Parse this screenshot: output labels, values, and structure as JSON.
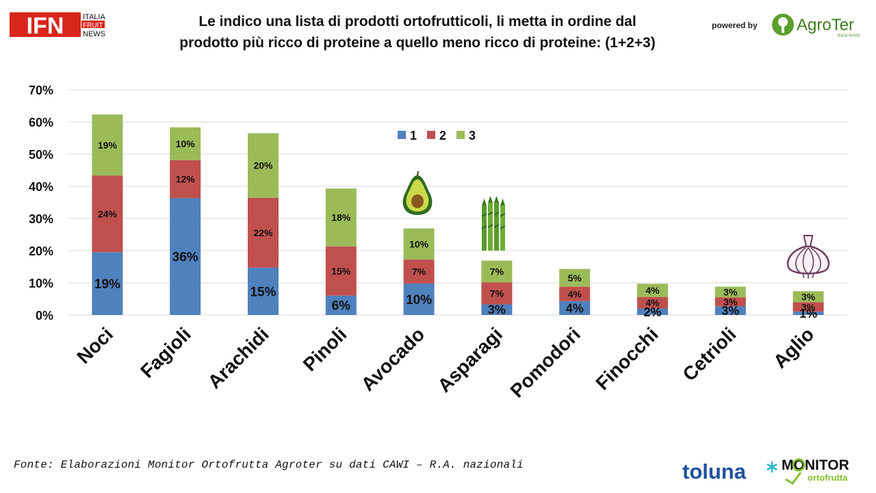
{
  "header": {
    "logo_ifn": {
      "letters": "IFN",
      "line1": "ITALIA",
      "line2": "FRUIT",
      "line3": "NEWS"
    },
    "title_line1": "Le indico una lista di prodotti ortofrutticoli, li metta in ordine dal",
    "title_line2": "prodotto più ricco di proteine a quello meno ricco di proteine: (1+2+3)",
    "powered_by": "powered by",
    "logo_agroter": {
      "name": "AgroTer",
      "tagline": "think fresh"
    }
  },
  "footer": {
    "source": "Fonte: Elaborazioni Monitor Ortofrutta Agroter su dati CAWI – R.A. nazionali",
    "logo_toluna": "toluna",
    "logo_monitor": {
      "line1": "MONITOR",
      "line2": "ortofrutta"
    }
  },
  "icons": [
    "avocado-icon",
    "asparagus-icon",
    "garlic-icon"
  ],
  "chart_data": {
    "type": "bar",
    "stacked": true,
    "categories": [
      "Noci",
      "Fagioli",
      "Arachidi",
      "Pinoli",
      "Avocado",
      "Asparagi",
      "Pomodori",
      "Finocchi",
      "Cetrioli",
      "Aglio"
    ],
    "series": [
      {
        "name": "1",
        "color": "#4f81bd",
        "values": [
          19.5,
          36.3,
          14.7,
          6.0,
          9.8,
          3.3,
          4.3,
          2.0,
          2.7,
          1.0
        ],
        "labels": [
          "19%",
          "36%",
          "15%",
          "6%",
          "10%",
          "3%",
          "4%",
          "2%",
          "3%",
          "1%"
        ]
      },
      {
        "name": "2",
        "color": "#c0504d",
        "values": [
          23.8,
          11.8,
          21.7,
          15.3,
          7.4,
          6.8,
          4.5,
          3.6,
          2.8,
          3.0
        ],
        "labels": [
          "24%",
          "12%",
          "22%",
          "15%",
          "7%",
          "7%",
          "4%",
          "4%",
          "3%",
          "3%"
        ]
      },
      {
        "name": "3",
        "color": "#9bbb59",
        "values": [
          19.0,
          10.2,
          20.1,
          18.0,
          9.7,
          6.8,
          5.5,
          4.1,
          3.3,
          3.4
        ],
        "labels": [
          "19%",
          "10%",
          "20%",
          "18%",
          "10%",
          "7%",
          "5%",
          "4%",
          "3%",
          "3%"
        ]
      }
    ],
    "y_ticks": [
      "0%",
      "10%",
      "20%",
      "30%",
      "40%",
      "50%",
      "60%",
      "70%"
    ],
    "ylim": [
      0,
      70
    ],
    "grid": true,
    "legend": "top-center",
    "title": "Le indico una lista di prodotti ortofrutticoli, li metta in ordine dal prodotto più ricco di proteine a quello meno ricco di proteine: (1+2+3)"
  }
}
